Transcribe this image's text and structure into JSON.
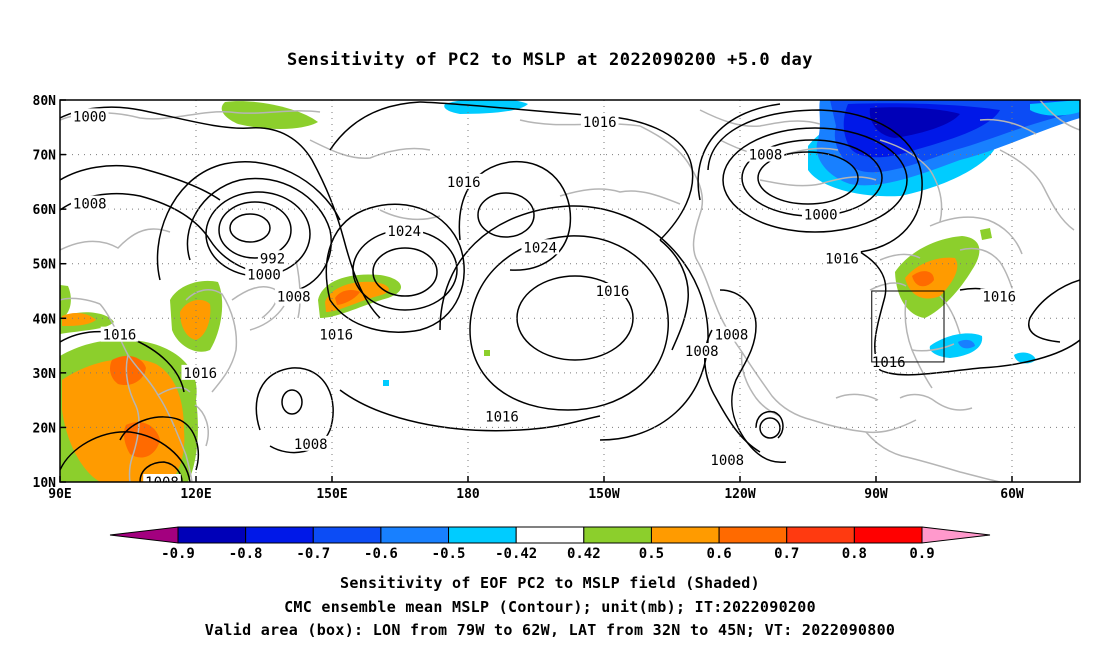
{
  "title": "Sensitivity of PC2 to MSLP at 2022090200 +5.0 day",
  "lat_labels": [
    "80N",
    "70N",
    "60N",
    "50N",
    "40N",
    "30N",
    "20N",
    "10N"
  ],
  "lon_labels": [
    "90E",
    "120E",
    "150E",
    "180",
    "150W",
    "120W",
    "90W",
    "60W"
  ],
  "contour_labels": [
    {
      "text": "1000",
      "lon": 97,
      "lat": 77
    },
    {
      "text": "1016",
      "lon": -143,
      "lat": 76
    },
    {
      "text": "1008",
      "lon": -104,
      "lat": 70
    },
    {
      "text": "1016",
      "lon": -175,
      "lat": 65
    },
    {
      "text": "1008",
      "lon": 97,
      "lat": 61
    },
    {
      "text": "1000",
      "lon": -91,
      "lat": 59
    },
    {
      "text": "1024",
      "lon": 171,
      "lat": 56
    },
    {
      "text": "1024",
      "lon": -157,
      "lat": 53
    },
    {
      "text": "992",
      "lon": 140,
      "lat": 51
    },
    {
      "text": "1016",
      "lon": -86,
      "lat": 51
    },
    {
      "text": "1000",
      "lon": 138,
      "lat": 48
    },
    {
      "text": "1016",
      "lon": -140,
      "lat": 45
    },
    {
      "text": "1008",
      "lon": 145,
      "lat": 44
    },
    {
      "text": "1016",
      "lon": -49,
      "lat": 44
    },
    {
      "text": "1016",
      "lon": 104,
      "lat": 37
    },
    {
      "text": "1016",
      "lon": 155,
      "lat": 37
    },
    {
      "text": "1008",
      "lon": -112,
      "lat": 37
    },
    {
      "text": "1008",
      "lon": -119,
      "lat": 34
    },
    {
      "text": "1016",
      "lon": -75,
      "lat": 32
    },
    {
      "text": "1016",
      "lon": 123,
      "lat": 30
    },
    {
      "text": "1016",
      "lon": -166,
      "lat": 22
    },
    {
      "text": "1008",
      "lon": 149,
      "lat": 17
    },
    {
      "text": "1008",
      "lon": -113,
      "lat": 14
    },
    {
      "text": "1008",
      "lon": 114,
      "lat": 10
    }
  ],
  "valid_box": {
    "lon_min": -79,
    "lon_max": -62,
    "lat_min": 32,
    "lat_max": 45
  },
  "colorbar": {
    "colors": [
      "#a3007f",
      "#0000b8",
      "#0018e8",
      "#0c4cf5",
      "#1880ff",
      "#00ccff",
      "#ffffff",
      "#8ccf2c",
      "#ff9b00",
      "#ff6a00",
      "#ff3a10",
      "#ff0000",
      "#ff99cc"
    ],
    "labels": [
      "-0.9",
      "-0.8",
      "-0.7",
      "-0.6",
      "-0.5",
      "-0.42",
      "0.42",
      "0.5",
      "0.6",
      "0.7",
      "0.8",
      "0.9"
    ]
  },
  "captions": [
    "Sensitivity of EOF PC2 to MSLP field (Shaded)",
    "CMC ensemble mean MSLP (Contour); unit(mb); IT:2022090200",
    "Valid area (box): LON from 79W to 62W, LAT from 32N to 45N; VT: 2022090800"
  ]
}
